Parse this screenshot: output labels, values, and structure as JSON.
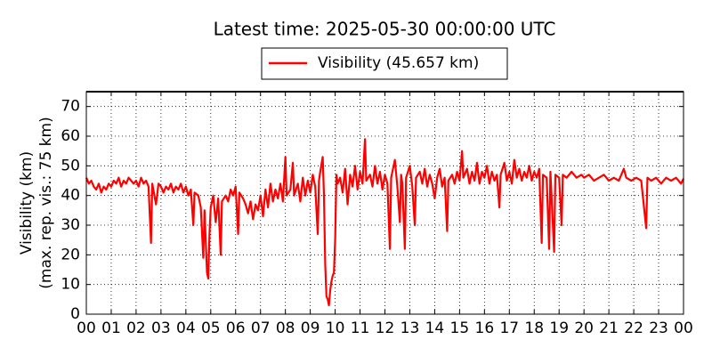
{
  "chart_data": {
    "type": "line",
    "title": "Latest time: 2025-05-30 00:00:00 UTC",
    "ylabel": [
      "Visibility (km)",
      "(max. rep. vis.: 75 km)"
    ],
    "xlim": [
      0,
      24
    ],
    "ylim": [
      0,
      75
    ],
    "yticks": [
      0,
      10,
      20,
      30,
      40,
      50,
      60,
      70
    ],
    "xticks": [
      {
        "value": 0,
        "label": "00"
      },
      {
        "value": 1,
        "label": "01"
      },
      {
        "value": 2,
        "label": "02"
      },
      {
        "value": 3,
        "label": "03"
      },
      {
        "value": 4,
        "label": "04"
      },
      {
        "value": 5,
        "label": "05"
      },
      {
        "value": 6,
        "label": "06"
      },
      {
        "value": 7,
        "label": "07"
      },
      {
        "value": 8,
        "label": "08"
      },
      {
        "value": 9,
        "label": "09"
      },
      {
        "value": 10,
        "label": "10"
      },
      {
        "value": 11,
        "label": "11"
      },
      {
        "value": 12,
        "label": "12"
      },
      {
        "value": 13,
        "label": "13"
      },
      {
        "value": 14,
        "label": "14"
      },
      {
        "value": 15,
        "label": "15"
      },
      {
        "value": 16,
        "label": "16"
      },
      {
        "value": 17,
        "label": "17"
      },
      {
        "value": 18,
        "label": "18"
      },
      {
        "value": 19,
        "label": "19"
      },
      {
        "value": 20,
        "label": "20"
      },
      {
        "value": 21,
        "label": "21"
      },
      {
        "value": 22,
        "label": "22"
      },
      {
        "value": 23,
        "label": "23"
      },
      {
        "value": 24,
        "label": "00"
      }
    ],
    "grid": true,
    "x": [
      0,
      0.1,
      0.2,
      0.3,
      0.4,
      0.5,
      0.6,
      0.7,
      0.8,
      0.9,
      1.0,
      1.1,
      1.2,
      1.3,
      1.4,
      1.5,
      1.6,
      1.7,
      1.8,
      1.9,
      2.0,
      2.1,
      2.2,
      2.3,
      2.4,
      2.5,
      2.6,
      2.65,
      2.8,
      2.9,
      3.0,
      3.1,
      3.2,
      3.3,
      3.4,
      3.5,
      3.6,
      3.7,
      3.8,
      3.9,
      4.0,
      4.1,
      4.2,
      4.3,
      4.35,
      4.5,
      4.6,
      4.7,
      4.75,
      4.85,
      4.9,
      4.95,
      5.0,
      5.1,
      5.2,
      5.3,
      5.4,
      5.45,
      5.6,
      5.7,
      5.8,
      5.9,
      6.0,
      6.1,
      6.15,
      6.3,
      6.4,
      6.5,
      6.6,
      6.7,
      6.8,
      6.9,
      7.0,
      7.1,
      7.2,
      7.3,
      7.4,
      7.5,
      7.6,
      7.7,
      7.8,
      7.9,
      8.0,
      8.05,
      8.2,
      8.3,
      8.35,
      8.5,
      8.6,
      8.7,
      8.8,
      8.9,
      9.0,
      9.1,
      9.2,
      9.3,
      9.35,
      9.4,
      9.5,
      9.55,
      9.6,
      9.65,
      9.7,
      9.75,
      9.8,
      9.85,
      9.9,
      9.95,
      10.0,
      10.05,
      10.1,
      10.2,
      10.3,
      10.4,
      10.5,
      10.6,
      10.7,
      10.8,
      10.9,
      11.0,
      11.1,
      11.2,
      11.25,
      11.4,
      11.5,
      11.6,
      11.7,
      11.8,
      11.9,
      12.0,
      12.1,
      12.2,
      12.25,
      12.4,
      12.5,
      12.6,
      12.65,
      12.7,
      12.8,
      12.85,
      13.0,
      13.1,
      13.2,
      13.25,
      13.4,
      13.5,
      13.6,
      13.7,
      13.8,
      13.9,
      14.0,
      14.1,
      14.2,
      14.3,
      14.4,
      14.5,
      14.55,
      14.7,
      14.8,
      14.9,
      15.0,
      15.1,
      15.15,
      15.3,
      15.4,
      15.5,
      15.6,
      15.7,
      15.8,
      15.9,
      16.0,
      16.1,
      16.2,
      16.3,
      16.4,
      16.5,
      16.6,
      16.65,
      16.8,
      16.9,
      17.0,
      17.1,
      17.2,
      17.3,
      17.4,
      17.5,
      17.6,
      17.7,
      17.8,
      17.9,
      18.0,
      18.1,
      18.2,
      18.3,
      18.35,
      18.5,
      18.6,
      18.65,
      18.8,
      18.85,
      19.0,
      19.1,
      19.15,
      19.3,
      19.5,
      19.7,
      19.9,
      20.0,
      20.2,
      20.4,
      20.6,
      20.8,
      21.0,
      21.2,
      21.4,
      21.6,
      21.7,
      21.9,
      22.1,
      22.3,
      22.5,
      22.55,
      22.7,
      22.9,
      23.1,
      23.3,
      23.5,
      23.7,
      23.9,
      24.0
    ],
    "series": [
      {
        "name": "Visibility (45.657 km)",
        "color": "#ff0000",
        "values": [
          46,
          44,
          45,
          43,
          42,
          44,
          41,
          43,
          42,
          44,
          43,
          45,
          44,
          46,
          43,
          45,
          44,
          46,
          45,
          44,
          45,
          43,
          46,
          44,
          45,
          43,
          24,
          44,
          37,
          44,
          43,
          41,
          43,
          42,
          44,
          41,
          43,
          42,
          44,
          41,
          43,
          40,
          42,
          30,
          41,
          40,
          36,
          19,
          35,
          14,
          12,
          27,
          36,
          40,
          31,
          39,
          20,
          38,
          40,
          38,
          42,
          40,
          43,
          27,
          41,
          39,
          37,
          34,
          38,
          32,
          37,
          35,
          40,
          33,
          42,
          36,
          44,
          38,
          42,
          39,
          44,
          38,
          53,
          40,
          42,
          51,
          40,
          44,
          38,
          46,
          40,
          45,
          41,
          47,
          43,
          27,
          45,
          48,
          53,
          40,
          17,
          6,
          5,
          3,
          8,
          11,
          13,
          14,
          25,
          47,
          44,
          46,
          41,
          49,
          37,
          47,
          43,
          50,
          42,
          48,
          44,
          59,
          45,
          47,
          43,
          50,
          44,
          48,
          42,
          47,
          44,
          22,
          46,
          52,
          43,
          31,
          47,
          44,
          22,
          46,
          50,
          43,
          30,
          46,
          48,
          44,
          49,
          43,
          47,
          44,
          39,
          46,
          49,
          43,
          46,
          28,
          45,
          47,
          44,
          48,
          45,
          55,
          46,
          49,
          44,
          48,
          45,
          51,
          44,
          48,
          46,
          50,
          44,
          48,
          45,
          47,
          36,
          47,
          51,
          45,
          48,
          44,
          52,
          46,
          49,
          45,
          48,
          46,
          50,
          45,
          48,
          46,
          49,
          24,
          47,
          46,
          22,
          48,
          21,
          47,
          46,
          30,
          47,
          46,
          48,
          46,
          47,
          46,
          47,
          45,
          46,
          47,
          45,
          46,
          45,
          49,
          46,
          45,
          46,
          45,
          29,
          46,
          45,
          46,
          44,
          46,
          45,
          46,
          44,
          45.657
        ]
      }
    ]
  }
}
